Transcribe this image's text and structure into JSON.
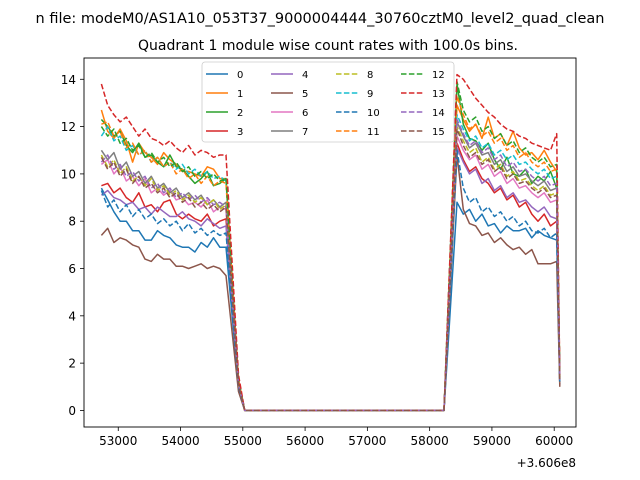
{
  "chart_data": {
    "type": "line",
    "suptitle": "n file: modeM0/AS1A10_053T37_9000004444_30760cztM0_level2_quad_clean",
    "title": "Quadrant 1 module wise count rates with 100.0s bins.",
    "xlabel": "",
    "ylabel": "",
    "x_offset_label": "+3.606e8",
    "xlim": [
      52450,
      60350
    ],
    "ylim": [
      -0.7,
      14.9
    ],
    "x_ticks": [
      53000,
      54000,
      55000,
      56000,
      57000,
      58000,
      59000,
      60000
    ],
    "x_tick_labels": [
      "53000",
      "54000",
      "55000",
      "56000",
      "57000",
      "58000",
      "59000",
      "60000"
    ],
    "y_ticks": [
      0,
      2,
      4,
      6,
      8,
      10,
      12,
      14
    ],
    "y_tick_labels": [
      "0",
      "2",
      "4",
      "6",
      "8",
      "10",
      "12",
      "14"
    ],
    "legend_position": "upper center",
    "segments": [
      {
        "x_start": 52730,
        "n": 21
      },
      {
        "x_start": 58440,
        "n": 17
      }
    ],
    "gap_x": [
      54930,
      55030,
      58230
    ],
    "series": [
      {
        "name": "0",
        "color": "#1f77b4",
        "dash": false,
        "seg1": [
          9.4,
          8.9,
          8.4,
          8.0,
          8.0,
          7.6,
          7.6,
          7.2,
          7.2,
          7.6,
          7.4,
          7.3,
          7.0,
          6.9,
          6.9,
          6.7,
          7.1,
          6.9,
          7.3,
          6.9,
          6.9
        ],
        "seg1_end": [
          1.0,
          0.0
        ],
        "seg2_start": 0.0,
        "seg2": [
          8.8,
          8.3,
          8.5,
          8.0,
          8.3,
          7.8,
          7.9,
          7.5,
          7.8,
          7.6,
          7.6,
          7.7,
          7.3,
          7.6,
          7.4,
          7.3,
          7.2
        ],
        "seg2_end": 1.1
      },
      {
        "name": "1",
        "color": "#ff7f0e",
        "dash": false,
        "seg1": [
          12.7,
          11.8,
          11.5,
          11.9,
          11.4,
          10.5,
          11.3,
          10.9,
          10.7,
          10.4,
          10.9,
          10.6,
          10.4,
          10.1,
          10.1,
          10.0,
          9.9,
          10.3,
          10.2,
          9.8,
          9.8
        ],
        "seg1_end": [
          1.3,
          0.0
        ],
        "seg2_start": 0.0,
        "seg2": [
          12.9,
          12.3,
          11.8,
          12.1,
          11.5,
          12.4,
          11.5,
          11.7,
          11.2,
          11.8,
          11.1,
          10.8,
          10.9,
          10.6,
          11.0,
          10.5,
          10.1
        ],
        "seg2_end": 1.4
      },
      {
        "name": "2",
        "color": "#2ca02c",
        "dash": false,
        "seg1": [
          12.3,
          12.0,
          11.6,
          11.8,
          11.2,
          10.9,
          11.3,
          10.7,
          10.8,
          10.5,
          10.3,
          10.8,
          10.3,
          10.2,
          9.9,
          9.6,
          9.8,
          10.1,
          9.5,
          9.6,
          9.8
        ],
        "seg1_end": [
          1.3,
          0.0
        ],
        "seg2_start": 0.0,
        "seg2": [
          13.8,
          12.1,
          11.5,
          11.4,
          11.0,
          11.3,
          10.6,
          10.2,
          10.7,
          10.0,
          9.9,
          10.2,
          9.6,
          9.9,
          9.7,
          10.1,
          9.4
        ],
        "seg2_end": 1.3
      },
      {
        "name": "3",
        "color": "#d62728",
        "dash": false,
        "seg1": [
          9.5,
          9.6,
          9.2,
          9.4,
          9.0,
          8.8,
          9.2,
          8.6,
          8.7,
          8.4,
          8.8,
          8.9,
          8.3,
          8.1,
          8.3,
          8.1,
          8.0,
          8.3,
          7.8,
          8.0,
          8.1
        ],
        "seg1_end": [
          1.0,
          0.0
        ],
        "seg2_start": 0.0,
        "seg2": [
          11.3,
          10.6,
          10.1,
          10.3,
          9.8,
          9.6,
          9.2,
          9.4,
          8.9,
          9.1,
          8.6,
          8.8,
          8.3,
          8.0,
          8.3,
          7.8,
          8.0
        ],
        "seg2_end": 1.1
      },
      {
        "name": "4",
        "color": "#9467bd",
        "dash": false,
        "seg1": [
          9.1,
          9.3,
          9.0,
          8.9,
          8.7,
          8.8,
          8.5,
          8.6,
          8.3,
          8.6,
          8.4,
          8.2,
          8.2,
          8.4,
          8.1,
          8.0,
          7.8,
          8.1,
          7.9,
          7.7,
          7.8
        ],
        "seg1_end": [
          1.0,
          0.0
        ],
        "seg2_start": 0.0,
        "seg2": [
          11.1,
          10.5,
          10.0,
          10.2,
          9.6,
          9.8,
          9.3,
          9.5,
          9.0,
          9.2,
          8.8,
          8.9,
          8.6,
          8.4,
          8.6,
          8.2,
          8.1
        ],
        "seg2_end": 1.1
      },
      {
        "name": "5",
        "color": "#8c564b",
        "dash": false,
        "seg1": [
          7.4,
          7.7,
          7.1,
          7.3,
          7.2,
          7.0,
          6.9,
          6.4,
          6.3,
          6.6,
          6.4,
          6.4,
          6.1,
          6.1,
          6.0,
          6.1,
          6.2,
          6.0,
          6.1,
          6.0,
          5.7
        ],
        "seg1_end": [
          0.8,
          0.0
        ],
        "seg2_start": 0.0,
        "seg2": [
          10.8,
          8.5,
          7.9,
          7.8,
          7.4,
          7.5,
          7.1,
          7.3,
          7.0,
          6.8,
          6.9,
          6.6,
          6.8,
          6.2,
          6.2,
          6.2,
          6.3
        ],
        "seg2_end": 1.0
      },
      {
        "name": "6",
        "color": "#e377c2",
        "dash": false,
        "seg1": [
          10.4,
          10.6,
          10.0,
          10.3,
          9.7,
          9.9,
          9.5,
          9.8,
          9.2,
          9.4,
          9.1,
          9.3,
          8.9,
          9.0,
          8.7,
          8.8,
          8.6,
          8.9,
          8.4,
          8.6,
          8.5
        ],
        "seg1_end": [
          1.1,
          0.0
        ],
        "seg2_start": 0.0,
        "seg2": [
          11.6,
          11.0,
          10.6,
          10.8,
          10.2,
          10.4,
          9.9,
          10.1,
          9.6,
          9.8,
          9.4,
          9.5,
          9.2,
          9.0,
          9.2,
          8.8,
          8.9
        ],
        "seg2_end": 1.2
      },
      {
        "name": "7",
        "color": "#7f7f7f",
        "dash": false,
        "seg1": [
          11.0,
          10.6,
          10.9,
          10.2,
          10.5,
          9.9,
          10.1,
          9.6,
          9.9,
          9.4,
          9.6,
          9.2,
          9.4,
          9.0,
          9.2,
          8.9,
          9.1,
          8.7,
          8.9,
          8.6,
          8.8
        ],
        "seg1_end": [
          1.1,
          0.0
        ],
        "seg2_start": 0.0,
        "seg2": [
          12.2,
          11.6,
          11.1,
          11.3,
          10.8,
          10.9,
          10.4,
          10.6,
          10.1,
          10.3,
          9.9,
          10.0,
          9.7,
          9.5,
          9.7,
          9.3,
          9.4
        ],
        "seg2_end": 1.2
      },
      {
        "name": "8",
        "color": "#bcbd22",
        "dash": true,
        "seg1": [
          10.8,
          10.3,
          10.6,
          10.0,
          10.3,
          9.7,
          9.9,
          9.5,
          9.8,
          9.3,
          9.5,
          9.1,
          9.3,
          8.9,
          9.1,
          8.8,
          9.0,
          8.7,
          8.9,
          8.5,
          8.7
        ],
        "seg1_end": [
          1.1,
          0.0
        ],
        "seg2_start": 0.0,
        "seg2": [
          12.0,
          11.4,
          10.9,
          11.1,
          10.5,
          10.7,
          10.2,
          10.4,
          9.9,
          10.1,
          9.7,
          9.8,
          9.5,
          9.3,
          9.5,
          9.1,
          9.2
        ],
        "seg2_end": 1.2
      },
      {
        "name": "9",
        "color": "#17becf",
        "dash": true,
        "seg1": [
          11.6,
          12.0,
          11.4,
          11.6,
          11.0,
          11.2,
          10.8,
          11.0,
          10.5,
          10.7,
          10.3,
          10.5,
          10.2,
          10.4,
          10.0,
          10.2,
          9.9,
          10.1,
          9.8,
          9.9,
          9.7
        ],
        "seg1_end": [
          1.3,
          0.0
        ],
        "seg2_start": 0.0,
        "seg2": [
          12.5,
          11.9,
          11.4,
          11.6,
          11.1,
          11.3,
          10.8,
          11.0,
          10.6,
          10.8,
          10.4,
          10.5,
          10.2,
          10.0,
          10.2,
          9.8,
          9.9
        ],
        "seg2_end": 1.3
      },
      {
        "name": "10",
        "color": "#1f77b4",
        "dash": true,
        "seg1": [
          9.3,
          8.6,
          8.9,
          8.4,
          8.7,
          8.2,
          8.5,
          8.1,
          8.3,
          7.9,
          8.1,
          7.8,
          8.0,
          7.6,
          7.9,
          7.5,
          7.7,
          7.4,
          7.6,
          7.4,
          7.5
        ],
        "seg1_end": [
          1.0,
          0.0
        ],
        "seg2_start": 0.0,
        "seg2": [
          11.0,
          9.4,
          8.8,
          9.0,
          8.4,
          8.6,
          8.2,
          8.4,
          8.0,
          8.2,
          7.8,
          8.0,
          7.6,
          7.5,
          7.7,
          7.3,
          7.5
        ],
        "seg2_end": 1.1
      },
      {
        "name": "11",
        "color": "#ff7f0e",
        "dash": true,
        "seg1": [
          12.1,
          12.2,
          11.6,
          11.8,
          11.1,
          11.3,
          10.8,
          11.0,
          10.5,
          10.7,
          10.3,
          10.5,
          10.0,
          10.2,
          9.8,
          10.0,
          9.6,
          9.9,
          9.5,
          9.7,
          9.6
        ],
        "seg1_end": [
          1.3,
          0.0
        ],
        "seg2_start": 0.0,
        "seg2": [
          13.3,
          12.5,
          11.9,
          12.1,
          11.6,
          11.8,
          11.3,
          11.5,
          11.0,
          11.2,
          10.7,
          10.9,
          10.5,
          10.3,
          10.5,
          10.1,
          10.2
        ],
        "seg2_end": 1.4
      },
      {
        "name": "12",
        "color": "#2ca02c",
        "dash": true,
        "seg1": [
          12.0,
          11.6,
          11.9,
          11.3,
          11.5,
          11.0,
          11.2,
          10.7,
          10.9,
          10.5,
          10.7,
          10.3,
          10.5,
          10.1,
          10.3,
          9.9,
          10.1,
          9.8,
          10.0,
          9.7,
          9.8
        ],
        "seg1_end": [
          1.3,
          0.0
        ],
        "seg2_start": 0.0,
        "seg2": [
          13.9,
          12.7,
          12.2,
          12.4,
          11.8,
          12.0,
          11.5,
          11.7,
          11.2,
          11.4,
          10.9,
          11.1,
          10.7,
          10.5,
          10.7,
          10.3,
          10.4
        ],
        "seg2_end": 1.4
      },
      {
        "name": "13",
        "color": "#d62728",
        "dash": true,
        "seg1": [
          13.8,
          12.9,
          12.5,
          12.2,
          12.4,
          12.0,
          11.6,
          11.9,
          11.5,
          11.4,
          11.2,
          11.4,
          11.1,
          10.9,
          11.2,
          10.8,
          11.0,
          10.9,
          10.7,
          10.8,
          10.8
        ],
        "seg1_end": [
          1.5,
          0.0
        ],
        "seg2_start": 0.0,
        "seg2": [
          14.2,
          14.0,
          13.6,
          13.2,
          12.9,
          12.6,
          12.4,
          12.1,
          11.9,
          11.8,
          11.6,
          11.5,
          11.3,
          11.2,
          11.1,
          11.0,
          11.7
        ],
        "seg2_end": 1.5
      },
      {
        "name": "14",
        "color": "#9467bd",
        "dash": true,
        "seg1": [
          10.5,
          10.8,
          10.2,
          10.4,
          9.9,
          10.1,
          9.7,
          9.9,
          9.4,
          9.6,
          9.2,
          9.4,
          9.0,
          9.2,
          8.9,
          9.1,
          8.8,
          9.0,
          8.7,
          8.8,
          8.6
        ],
        "seg1_end": [
          1.1,
          0.0
        ],
        "seg2_start": 0.0,
        "seg2": [
          12.3,
          11.7,
          11.2,
          11.4,
          10.9,
          11.1,
          10.6,
          10.8,
          10.3,
          10.5,
          10.1,
          10.2,
          9.9,
          9.7,
          9.9,
          9.5,
          9.6
        ],
        "seg2_end": 1.3
      },
      {
        "name": "15",
        "color": "#8c564b",
        "dash": true,
        "seg1": [
          10.7,
          10.2,
          10.5,
          9.9,
          10.2,
          9.6,
          9.9,
          9.4,
          9.6,
          9.2,
          9.4,
          9.0,
          9.2,
          8.8,
          9.0,
          8.6,
          8.8,
          8.5,
          8.7,
          8.4,
          8.6
        ],
        "seg1_end": [
          1.1,
          0.0
        ],
        "seg2_start": 0.0,
        "seg2": [
          11.9,
          11.2,
          10.7,
          10.9,
          10.4,
          10.6,
          10.1,
          10.3,
          9.8,
          10.0,
          9.6,
          9.7,
          9.4,
          9.2,
          9.4,
          9.0,
          9.1
        ],
        "seg2_end": 1.2
      }
    ]
  }
}
